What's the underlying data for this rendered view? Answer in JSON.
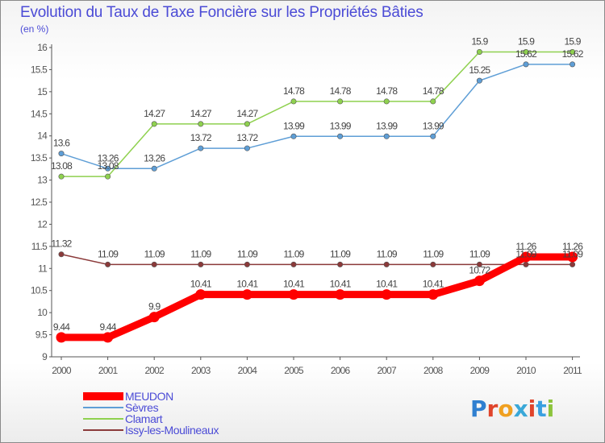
{
  "header": {
    "title": "Evolution du Taux de Taxe Foncière sur les Propriétés Bâties",
    "unit": "(en %)"
  },
  "logo": {
    "text": "Proxiti",
    "letters": [
      {
        "ch": "P",
        "color": "#2f7fd0"
      },
      {
        "ch": "r",
        "color": "#e0442b"
      },
      {
        "ch": "o",
        "color": "#f0a020"
      },
      {
        "ch": "x",
        "color": "#3aa8d8"
      },
      {
        "ch": "i",
        "color": "#e0442b"
      },
      {
        "ch": "t",
        "color": "#3aa0e0"
      },
      {
        "ch": "i",
        "color": "#8cc43c"
      }
    ]
  },
  "chart_data": {
    "type": "line",
    "title": "Evolution du Taux de Taxe Foncière sur les Propriétés Bâties",
    "ylabel": "(en %)",
    "xlabel": "",
    "categories": [
      "2000",
      "2001",
      "2002",
      "2003",
      "2004",
      "2005",
      "2006",
      "2007",
      "2008",
      "2009",
      "2010",
      "2011"
    ],
    "ylim": [
      9,
      16
    ],
    "yticks": [
      "9",
      "9.5",
      "10",
      "10.5",
      "11",
      "11.5",
      "12",
      "12.5",
      "13",
      "13.5",
      "14",
      "14.5",
      "15",
      "15.5",
      "16"
    ],
    "grid": false,
    "legend_position": "bottom-left",
    "series": [
      {
        "name": "MEUDON",
        "color": "#ff0000",
        "highlight": true,
        "values": [
          9.44,
          9.44,
          9.9,
          10.41,
          10.41,
          10.41,
          10.41,
          10.41,
          10.41,
          10.72,
          11.26,
          11.26
        ],
        "labels": [
          "9.44",
          "9.44",
          "9.9",
          "10.41",
          "10.41",
          "10.41",
          "10.41",
          "10.41",
          "10.41",
          "10.72",
          "11.26",
          "11.26"
        ]
      },
      {
        "name": "Sèvres",
        "color": "#5e9ed6",
        "highlight": false,
        "values": [
          13.6,
          13.26,
          13.26,
          13.72,
          13.72,
          13.99,
          13.99,
          13.99,
          13.99,
          15.25,
          15.62,
          15.62
        ],
        "labels": [
          "13.6",
          "13.26",
          "13.26",
          "13.72",
          "13.72",
          "13.99",
          "13.99",
          "13.99",
          "13.99",
          "15.25",
          "15.62",
          "15.62"
        ]
      },
      {
        "name": "Clamart",
        "color": "#8fd14f",
        "highlight": false,
        "values": [
          13.08,
          13.08,
          14.27,
          14.27,
          14.27,
          14.78,
          14.78,
          14.78,
          14.78,
          15.9,
          15.9,
          15.9
        ],
        "labels": [
          "13.08",
          "13.08",
          "14.27",
          "14.27",
          "14.27",
          "14.78",
          "14.78",
          "14.78",
          "14.78",
          "15.9",
          "15.9",
          "15.9"
        ]
      },
      {
        "name": "Issy-les-Moulineaux",
        "color": "#8b3a3a",
        "highlight": false,
        "values": [
          11.32,
          11.09,
          11.09,
          11.09,
          11.09,
          11.09,
          11.09,
          11.09,
          11.09,
          11.09,
          11.09,
          11.09
        ],
        "labels": [
          "11.32",
          "11.09",
          "11.09",
          "11.09",
          "11.09",
          "11.09",
          "11.09",
          "11.09",
          "11.09",
          "11.09",
          "11.09",
          "11.09"
        ]
      }
    ]
  }
}
